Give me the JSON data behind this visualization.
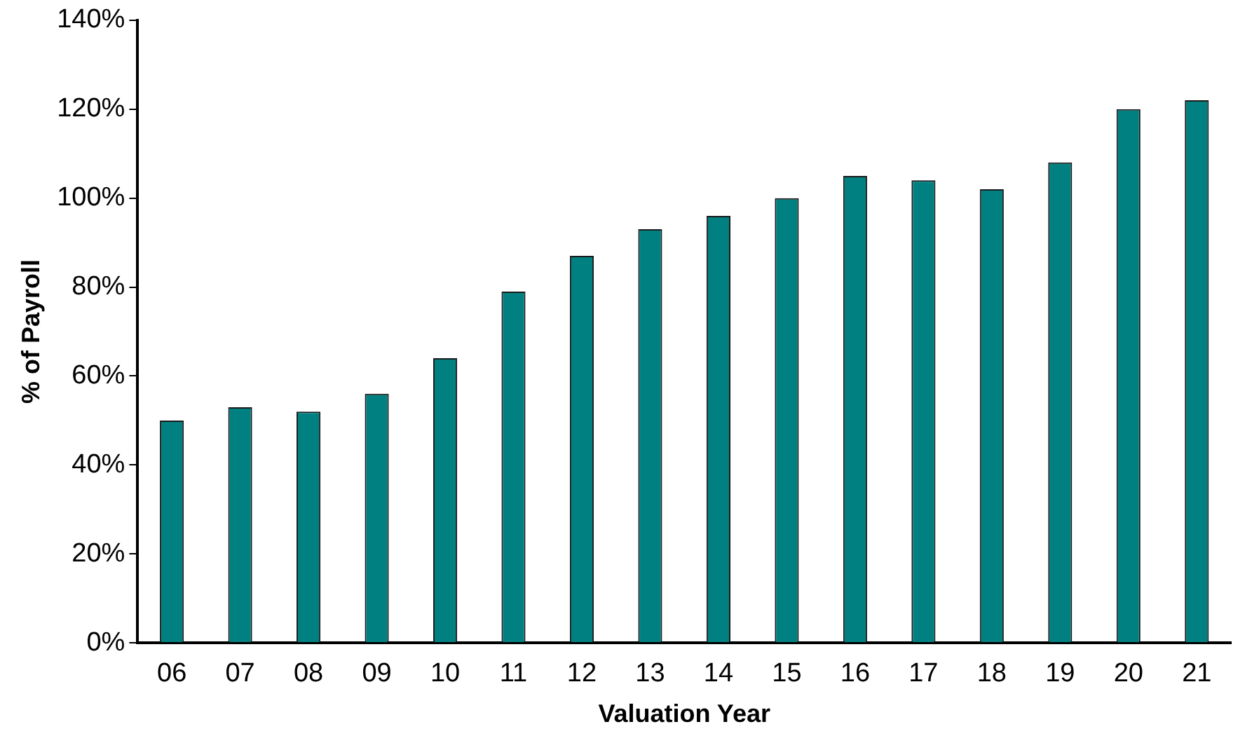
{
  "chart_data": {
    "type": "bar",
    "xlabel": "Valuation Year",
    "ylabel": "% of Payroll",
    "categories": [
      "06",
      "07",
      "08",
      "09",
      "10",
      "11",
      "12",
      "13",
      "14",
      "15",
      "16",
      "17",
      "18",
      "19",
      "20",
      "21"
    ],
    "values": [
      50,
      53,
      52,
      56,
      64,
      79,
      87,
      93,
      96,
      100,
      105,
      104,
      102,
      108,
      120,
      122
    ],
    "color": "#008080",
    "ylim": [
      0,
      140
    ],
    "yticks": [
      {
        "value": 0,
        "label": "0%"
      },
      {
        "value": 20,
        "label": "20%"
      },
      {
        "value": 40,
        "label": "40%"
      },
      {
        "value": 60,
        "label": "60%"
      },
      {
        "value": 80,
        "label": "80%"
      },
      {
        "value": 100,
        "label": "100%"
      },
      {
        "value": 120,
        "label": "120%"
      },
      {
        "value": 140,
        "label": "140%"
      }
    ],
    "grid": false,
    "legend": false
  }
}
